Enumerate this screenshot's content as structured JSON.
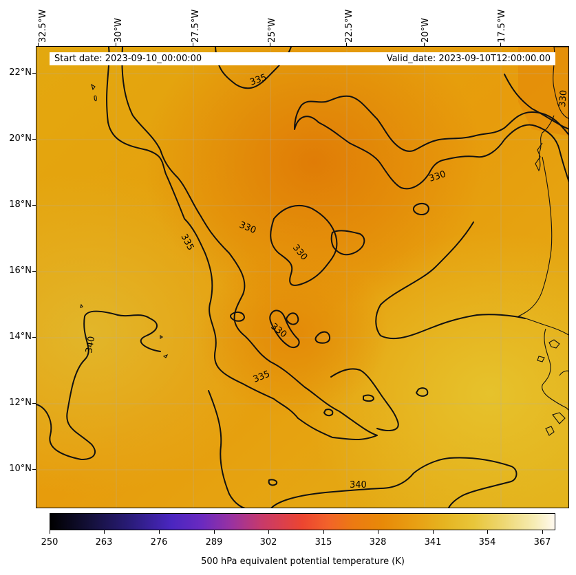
{
  "header": {
    "start_date": "Start date: 2023-09-10_00:00:00",
    "valid_date": "Valid_date: 2023-09-10T12:00:00.00"
  },
  "map": {
    "longitude_labels": [
      "32.5°W",
      "30°W",
      "27.5°W",
      "25°W",
      "22.5°W",
      "20°W",
      "17.5°W"
    ],
    "latitude_labels": [
      "22°N",
      "20°N",
      "18°N",
      "16°N",
      "14°N",
      "12°N",
      "10°N"
    ],
    "contour_labels": [
      "335",
      "330",
      "335",
      "330",
      "330",
      "330",
      "335",
      "340",
      "340",
      "330"
    ],
    "field_colors": {
      "high": "#e2b218",
      "mid": "#e8a10d",
      "low": "#e38608",
      "contour": "#111111",
      "coast": "#111111"
    }
  },
  "colorbar": {
    "ticks": [
      "250",
      "263",
      "276",
      "289",
      "302",
      "315",
      "328",
      "341",
      "354",
      "367"
    ],
    "title": "500 hPa equivalent potential temperature (K)",
    "min": 250,
    "max": 370
  }
}
